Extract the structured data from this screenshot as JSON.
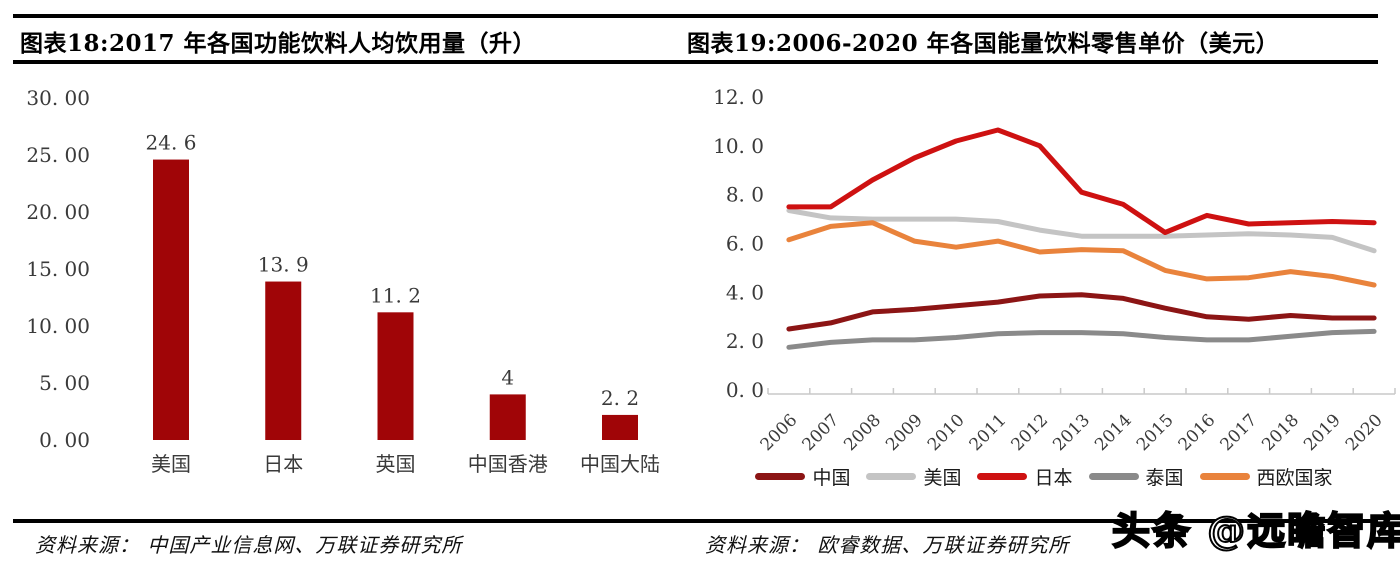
{
  "watermark": {
    "text": "头条 @远瞻智库"
  },
  "chart_data": [
    {
      "type": "bar",
      "title": "图表18:2017 年各国功能饮料人均饮用量（升）",
      "source": "资料来源： 中国产业信息网、万联证券研究所",
      "categories": [
        "美国",
        "日本",
        "英国",
        "中国香港",
        "中国大陆"
      ],
      "values": [
        24.6,
        13.9,
        11.2,
        4,
        2.2
      ],
      "value_labels": [
        "24. 6",
        "13. 9",
        "11. 2",
        "4",
        "2. 2"
      ],
      "ylim": [
        0,
        30
      ],
      "yticks": [
        0,
        5,
        10,
        15,
        20,
        25,
        30
      ],
      "ytick_labels": [
        "0. 00",
        "5. 00",
        "10. 00",
        "15. 00",
        "20. 00",
        "25. 00",
        "30. 00"
      ],
      "bar_color": "#A00507",
      "grid": false,
      "legend_position": "none"
    },
    {
      "type": "line",
      "title": "图表19:2006-2020 年各国能量饮料零售单价（美元）",
      "source": "资料来源： 欧睿数据、万联证券研究所",
      "x": [
        "2006",
        "2007",
        "2008",
        "2009",
        "2010",
        "2011",
        "2012",
        "2013",
        "2014",
        "2015",
        "2016",
        "2017",
        "2018",
        "2019",
        "2020"
      ],
      "ylim": [
        0,
        12
      ],
      "yticks": [
        0,
        2,
        4,
        6,
        8,
        10,
        12
      ],
      "ytick_labels": [
        "0. 0",
        "2. 0",
        "4. 0",
        "6. 0",
        "8. 0",
        "10. 0",
        "12. 0"
      ],
      "series": [
        {
          "name": "中国",
          "color": "#8C1515",
          "values": [
            2.5,
            2.75,
            3.2,
            3.3,
            3.45,
            3.6,
            3.85,
            3.9,
            3.75,
            3.35,
            3.0,
            2.9,
            3.05,
            2.95,
            2.95
          ]
        },
        {
          "name": "美国",
          "color": "#C4C4C4",
          "values": [
            7.35,
            7.05,
            7.0,
            7.0,
            7.0,
            6.9,
            6.55,
            6.3,
            6.3,
            6.3,
            6.35,
            6.4,
            6.35,
            6.25,
            5.7
          ]
        },
        {
          "name": "日本",
          "color": "#CE1111",
          "values": [
            7.5,
            7.5,
            8.6,
            9.5,
            10.2,
            10.65,
            10.0,
            8.1,
            7.6,
            6.45,
            7.15,
            6.8,
            6.85,
            6.9,
            6.85
          ]
        },
        {
          "name": "泰国",
          "color": "#8A8A8A",
          "values": [
            1.75,
            1.95,
            2.05,
            2.05,
            2.15,
            2.3,
            2.35,
            2.35,
            2.3,
            2.15,
            2.05,
            2.05,
            2.2,
            2.35,
            2.4
          ]
        },
        {
          "name": "西欧国家",
          "color": "#E9833C",
          "values": [
            6.15,
            6.7,
            6.85,
            6.1,
            5.85,
            6.1,
            5.65,
            5.75,
            5.7,
            4.9,
            4.55,
            4.6,
            4.85,
            4.65,
            4.3
          ]
        }
      ],
      "grid": false,
      "legend_position": "bottom"
    }
  ]
}
